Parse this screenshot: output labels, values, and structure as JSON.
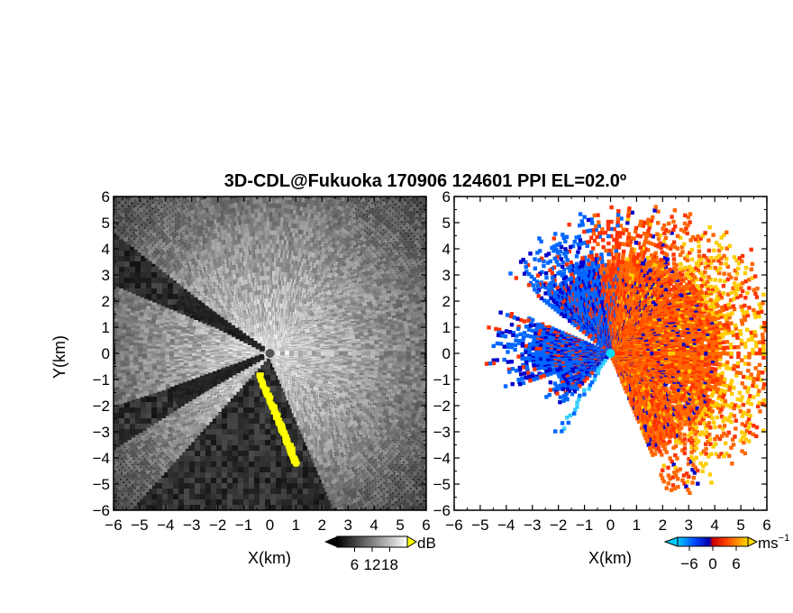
{
  "title": "3D-CDL@Fukuoka 170906 124601 PPI EL=02.0º",
  "chart_data": [
    {
      "type": "heatmap",
      "panel": "left",
      "quantity": "reflectivity",
      "xlabel": "X(km)",
      "ylabel": "Y(km)",
      "xlim": [
        -6,
        6
      ],
      "ylim": [
        -6,
        6
      ],
      "xticks": [
        -6,
        -5,
        -4,
        -3,
        -2,
        -1,
        0,
        1,
        2,
        3,
        4,
        5,
        6
      ],
      "yticks": [
        -6,
        -5,
        -4,
        -3,
        -2,
        -1,
        0,
        1,
        2,
        3,
        4,
        5,
        6
      ],
      "colormap": "grayscale",
      "colorbar": {
        "unit": "dB",
        "ticks": [
          6,
          12,
          18
        ],
        "range": [
          0,
          24
        ]
      },
      "highlight_color": "#ffff00",
      "background_color": "#2a2a2a",
      "radar_site": [
        0,
        0
      ]
    },
    {
      "type": "heatmap",
      "panel": "right",
      "quantity": "doppler velocity",
      "xlabel": "X(km)",
      "ylabel": "",
      "xlim": [
        -6,
        6
      ],
      "ylim": [
        -6,
        6
      ],
      "xticks": [
        -6,
        -5,
        -4,
        -3,
        -2,
        -1,
        0,
        1,
        2,
        3,
        4,
        5,
        6
      ],
      "yticks": [
        -6,
        -5,
        -4,
        -3,
        -2,
        -1,
        0,
        1,
        2,
        3,
        4,
        5,
        6
      ],
      "colormap": [
        "#0000cc",
        "#0066ff",
        "#33ccff",
        "#ff3300",
        "#ff6600",
        "#ffcc00"
      ],
      "colorbar": {
        "unit": "ms",
        "unit_superscript": "−1",
        "ticks": [
          -6,
          0,
          6
        ],
        "range": [
          -9,
          9
        ]
      },
      "radar_site": [
        0,
        0
      ],
      "radar_site_color": "#00ddff"
    }
  ]
}
